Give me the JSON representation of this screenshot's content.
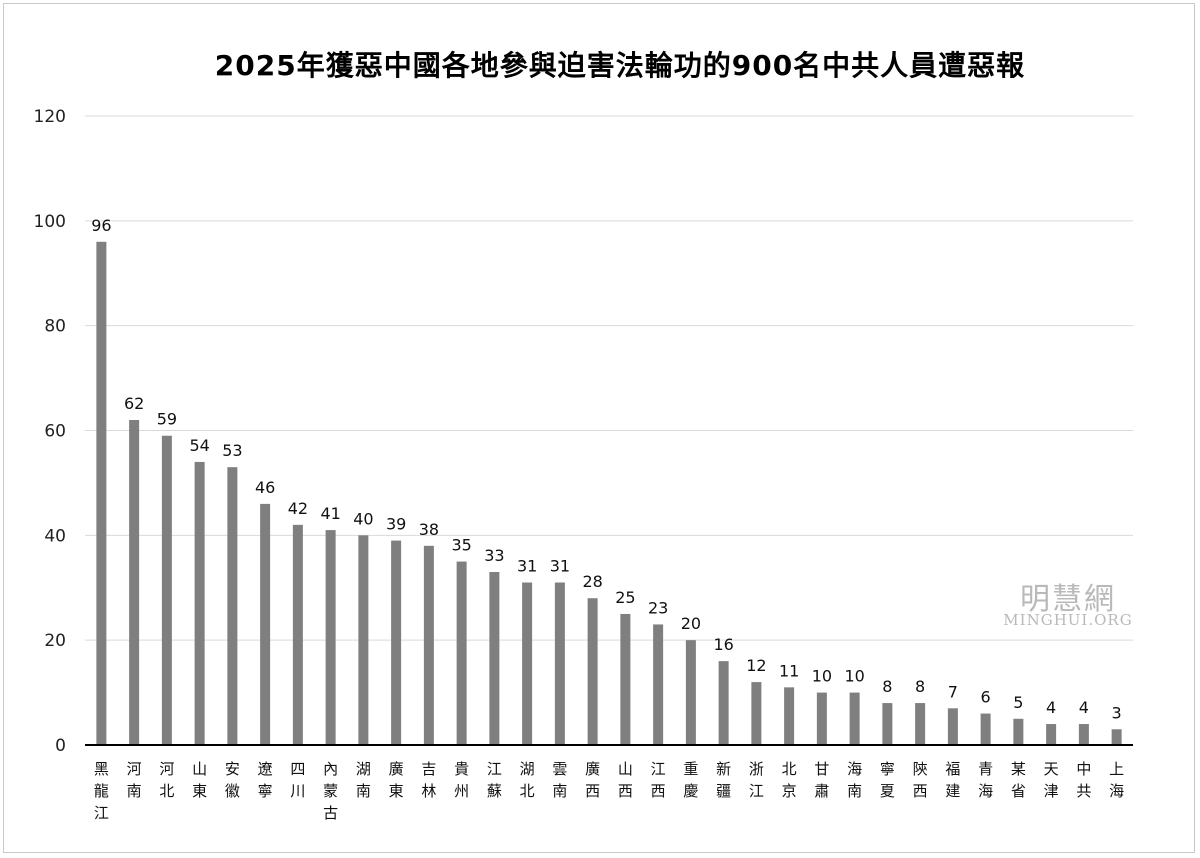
{
  "chart_data": {
    "type": "bar",
    "title": "2025年獲惡中國各地參與迫害法輪功的900名中共人員遭惡報",
    "xlabel": "",
    "ylabel": "",
    "ylim": [
      0,
      120
    ],
    "yticks": [
      0,
      20,
      40,
      60,
      80,
      100,
      120
    ],
    "grid": true,
    "bar_color": "#7f7f7f",
    "categories": [
      "黑龍江",
      "河南",
      "河北",
      "山東",
      "安徽",
      "遼寧",
      "四川",
      "內蒙古",
      "湖南",
      "廣東",
      "吉林",
      "貴州",
      "江蘇",
      "湖北",
      "雲南",
      "廣西",
      "山西",
      "江西",
      "重慶",
      "新疆",
      "浙江",
      "北京",
      "甘肅",
      "海南",
      "寧夏",
      "陝西",
      "福建",
      "青海",
      "某省",
      "天津",
      "中共",
      "上海"
    ],
    "values": [
      96,
      62,
      59,
      54,
      53,
      46,
      42,
      41,
      40,
      39,
      38,
      35,
      33,
      31,
      31,
      28,
      25,
      23,
      20,
      16,
      12,
      11,
      10,
      10,
      8,
      8,
      7,
      6,
      5,
      4,
      4,
      3
    ]
  },
  "watermark": {
    "logo": "明慧網",
    "url": "MINGHUI.ORG"
  }
}
